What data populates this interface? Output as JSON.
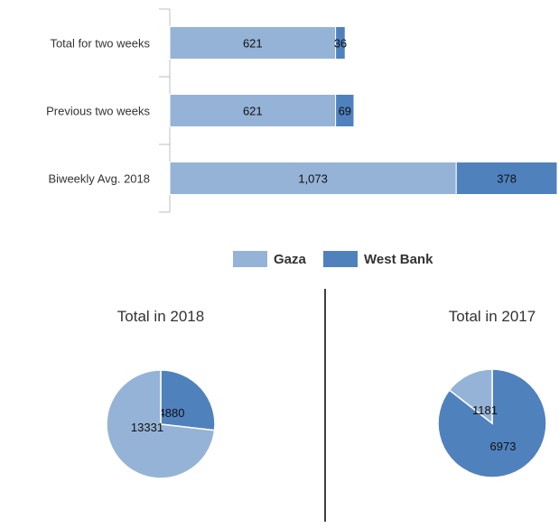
{
  "colors": {
    "gaza": "#95b3d7",
    "west_bank": "#4f81bd",
    "axis": "#bfbfbf",
    "text": "#333333",
    "divider": "#000000"
  },
  "chart_data": [
    {
      "type": "bar",
      "orientation": "horizontal",
      "stacked": true,
      "categories": [
        "Total for two weeks",
        "Previous two weeks",
        "Biweekly Avg. 2018"
      ],
      "series": [
        {
          "name": "Gaza",
          "values": [
            621,
            621,
            1073
          ],
          "labels": [
            "621",
            "621",
            "1,073"
          ]
        },
        {
          "name": "West Bank",
          "values": [
            36,
            69,
            378
          ],
          "labels": [
            "36",
            "69",
            "378"
          ]
        }
      ],
      "title": "",
      "xlabel": "",
      "ylabel": "",
      "xlim": [
        0,
        1451
      ],
      "grid": false,
      "legend": "bottom-center"
    },
    {
      "type": "pie",
      "title": "Total in 2018",
      "slices": [
        {
          "name": "West Bank",
          "value": 4880,
          "label": "4880"
        },
        {
          "name": "Gaza",
          "value": 13331,
          "label": "13331"
        }
      ]
    },
    {
      "type": "pie",
      "title": "Total in 2017",
      "slices": [
        {
          "name": "West Bank",
          "value": 6973,
          "label": "6973"
        },
        {
          "name": "Gaza",
          "value": 1181,
          "label": "1181"
        }
      ]
    }
  ]
}
